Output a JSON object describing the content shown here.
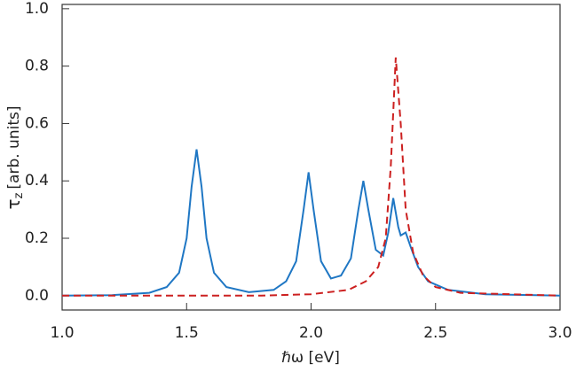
{
  "chart_data": {
    "type": "line",
    "xlabel": "ℏω [eV]",
    "ylabel": {
      "symbol": "τ",
      "subscript": "z",
      "unit": "[arb. units]"
    },
    "xlim": [
      1,
      3
    ],
    "ylim": [
      -0.05,
      1.015
    ],
    "xticks": [
      {
        "value": 1,
        "label": "1.0"
      },
      {
        "value": 1.5,
        "label": "1.5"
      },
      {
        "value": 2,
        "label": "2.0"
      },
      {
        "value": 2.5,
        "label": "2.5"
      },
      {
        "value": 3,
        "label": "3.0"
      }
    ],
    "yticks": [
      {
        "value": 0,
        "label": "0.0"
      },
      {
        "value": 0.2,
        "label": "0.2"
      },
      {
        "value": 0.4,
        "label": "0.4"
      },
      {
        "value": 0.6,
        "label": "0.6"
      },
      {
        "value": 0.8,
        "label": "0.8"
      },
      {
        "value": 1,
        "label": "1.0"
      }
    ],
    "series": [
      {
        "color": "#1f77c4",
        "dash": false,
        "x": [
          1.0,
          1.2,
          1.35,
          1.42,
          1.47,
          1.5,
          1.52,
          1.54,
          1.56,
          1.58,
          1.61,
          1.66,
          1.75,
          1.85,
          1.9,
          1.94,
          1.97,
          1.99,
          2.01,
          2.04,
          2.08,
          2.12,
          2.16,
          2.19,
          2.21,
          2.23,
          2.26,
          2.29,
          2.31,
          2.33,
          2.35,
          2.36,
          2.38,
          2.4,
          2.43,
          2.47,
          2.55,
          2.7,
          3.0
        ],
        "values": [
          0,
          0.002,
          0.01,
          0.03,
          0.08,
          0.2,
          0.38,
          0.51,
          0.38,
          0.2,
          0.08,
          0.03,
          0.012,
          0.02,
          0.05,
          0.12,
          0.3,
          0.43,
          0.3,
          0.12,
          0.06,
          0.07,
          0.13,
          0.3,
          0.4,
          0.3,
          0.16,
          0.14,
          0.22,
          0.34,
          0.24,
          0.21,
          0.22,
          0.17,
          0.1,
          0.05,
          0.02,
          0.005,
          0
        ]
      },
      {
        "color": "#cc2020",
        "dash": true,
        "x": [
          1.0,
          1.8,
          2.0,
          2.15,
          2.22,
          2.27,
          2.3,
          2.32,
          2.34,
          2.36,
          2.38,
          2.41,
          2.45,
          2.5,
          2.6,
          3.0
        ],
        "values": [
          0,
          0,
          0.005,
          0.02,
          0.05,
          0.1,
          0.2,
          0.45,
          0.83,
          0.6,
          0.3,
          0.15,
          0.07,
          0.03,
          0.01,
          0
        ]
      }
    ]
  }
}
